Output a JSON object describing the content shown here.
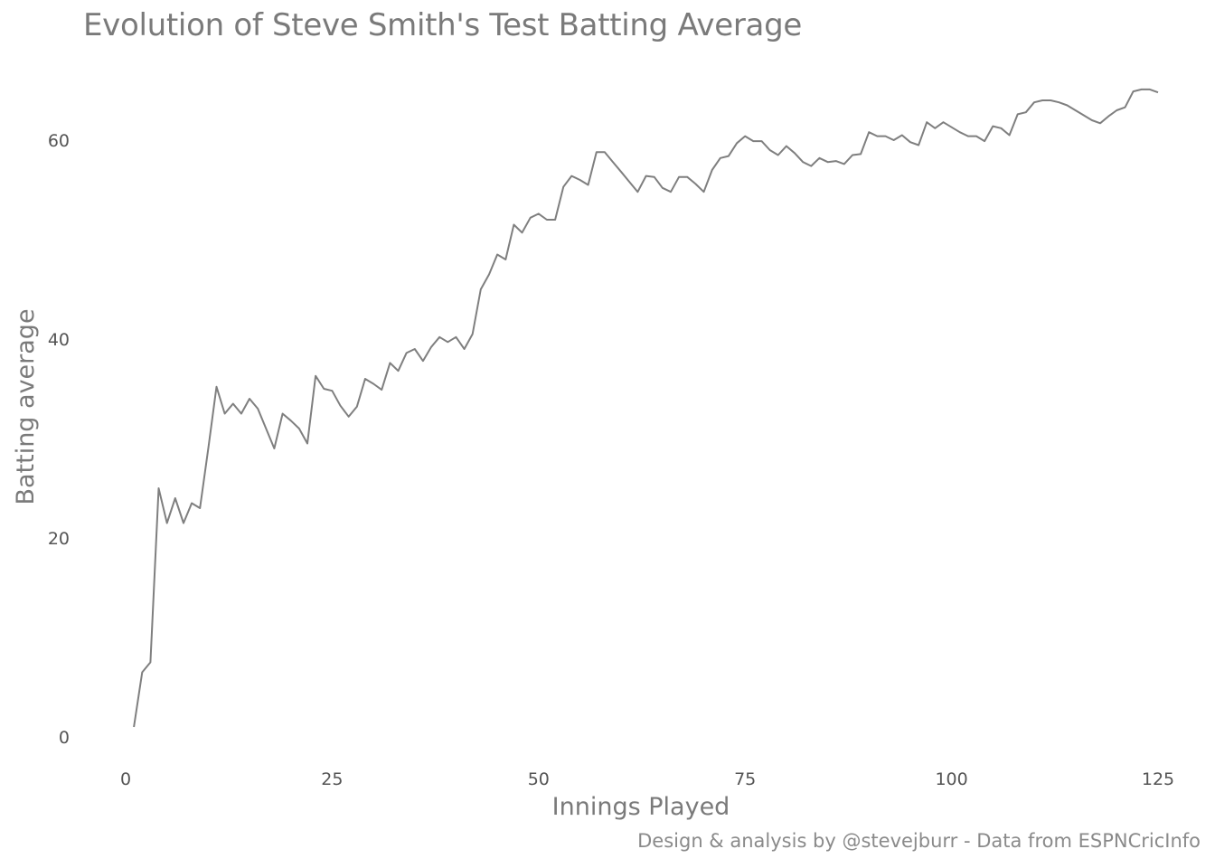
{
  "chart_data": {
    "type": "line",
    "title": "Evolution of Steve Smith's Test Batting Average",
    "xlabel": "Innings Played",
    "ylabel": "Batting average",
    "caption": "Design & analysis by @stevejburr - Data from ESPNCricInfo",
    "xlim": [
      0,
      125
    ],
    "ylim": [
      0,
      65
    ],
    "x_ticks": [
      0,
      25,
      50,
      75,
      100,
      125
    ],
    "y_ticks": [
      0,
      20,
      40,
      60
    ],
    "grid": false,
    "line_color": "#7f7f7f",
    "series": [
      {
        "x": [
          1,
          2,
          3,
          4,
          5,
          6,
          7,
          8,
          9,
          10,
          11,
          12,
          13,
          14,
          15,
          16,
          17,
          18,
          19,
          20,
          21,
          22,
          23,
          24,
          25,
          26,
          27,
          28,
          29,
          30,
          31,
          32,
          33,
          34,
          35,
          36,
          37,
          38,
          39,
          40,
          41,
          42,
          43,
          44,
          45,
          46,
          47,
          48,
          49,
          50,
          51,
          52,
          53,
          54,
          55,
          56,
          57,
          58,
          59,
          60,
          61,
          62,
          63,
          64,
          65,
          66,
          67,
          68,
          69,
          70,
          71,
          72,
          73,
          74,
          75,
          76,
          77,
          78,
          79,
          80,
          81,
          82,
          83,
          84,
          85,
          86,
          87,
          88,
          89,
          90,
          91,
          92,
          93,
          94,
          95,
          96,
          97,
          98,
          99,
          100,
          101,
          102,
          103,
          104,
          105,
          106,
          107,
          108,
          109,
          110,
          111,
          112,
          113,
          114,
          115,
          116,
          117,
          118,
          119,
          120,
          121,
          122,
          123,
          124,
          125
        ],
        "y": [
          1.0,
          6.5,
          7.5,
          25.0,
          21.5,
          24.0,
          21.5,
          23.5,
          23.0,
          29.0,
          35.2,
          32.5,
          33.5,
          32.5,
          34.0,
          33.0,
          31.0,
          29.0,
          32.5,
          31.8,
          31.0,
          29.5,
          36.3,
          35.0,
          34.8,
          33.3,
          32.2,
          33.2,
          36.0,
          35.5,
          34.9,
          37.6,
          36.8,
          38.6,
          39.0,
          37.8,
          39.2,
          40.2,
          39.7,
          40.2,
          39.0,
          40.5,
          45.0,
          46.5,
          48.5,
          48.0,
          51.5,
          50.7,
          52.2,
          52.6,
          52.0,
          52.0,
          55.3,
          56.4,
          56.0,
          55.5,
          58.8,
          58.8,
          57.8,
          56.8,
          55.8,
          54.8,
          56.4,
          56.3,
          55.2,
          54.8,
          56.3,
          56.3,
          55.6,
          54.8,
          57.0,
          58.2,
          58.4,
          59.7,
          60.4,
          59.9,
          59.9,
          59.0,
          58.5,
          59.4,
          58.7,
          57.8,
          57.4,
          58.2,
          57.8,
          57.9,
          57.6,
          58.5,
          58.6,
          60.8,
          60.4,
          60.4,
          60.0,
          60.5,
          59.8,
          59.5,
          61.8,
          61.2,
          61.8,
          61.3,
          60.8,
          60.4,
          60.4,
          59.9,
          61.4,
          61.2,
          60.5,
          62.6,
          62.8,
          63.8,
          64.0,
          64.0,
          63.8,
          63.5,
          63.0,
          62.5,
          62.0,
          61.7,
          62.4,
          63.0,
          63.3,
          64.9,
          65.1,
          65.1,
          64.8
        ]
      }
    ]
  }
}
